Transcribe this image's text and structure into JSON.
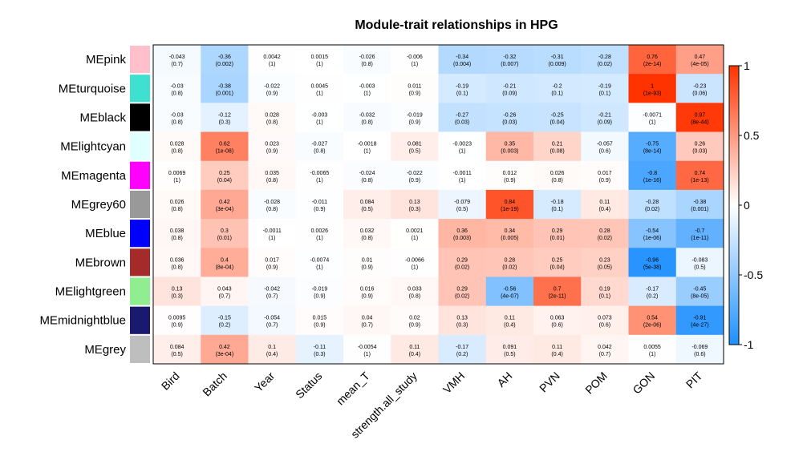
{
  "chart_data": {
    "type": "heatmap",
    "title": "Module-trait relationships in HPG",
    "rows": [
      "MEpink",
      "MEturquoise",
      "MEblack",
      "MElightcyan",
      "MEmagenta",
      "MEgrey60",
      "MEblue",
      "MEbrown",
      "MElightgreen",
      "MEmidnightblue",
      "MEgrey"
    ],
    "row_colors": [
      "#ffc0cb",
      "#40e0d0",
      "#000000",
      "#e0ffff",
      "#ff00ff",
      "#999999",
      "#0000ff",
      "#a52a2a",
      "#90ee90",
      "#191970",
      "#bebebe"
    ],
    "columns": [
      "Bird",
      "Batch",
      "Year",
      "Status",
      "mean_T",
      "strength.all_study",
      "VMH",
      "AH",
      "PVN",
      "POM",
      "GON",
      "PIT"
    ],
    "values": [
      [
        -0.043,
        -0.36,
        0.0042,
        0.0015,
        -0.026,
        -0.006,
        -0.34,
        -0.32,
        -0.31,
        -0.28,
        0.76,
        0.47
      ],
      [
        -0.03,
        -0.38,
        -0.022,
        0.0045,
        -0.003,
        0.011,
        -0.19,
        -0.21,
        -0.2,
        -0.19,
        1,
        -0.23
      ],
      [
        -0.03,
        -0.12,
        0.028,
        -0.003,
        -0.032,
        -0.019,
        -0.27,
        -0.26,
        -0.25,
        -0.21,
        -0.0071,
        0.97
      ],
      [
        0.028,
        0.62,
        0.023,
        -0.027,
        -0.0018,
        0.081,
        -0.0023,
        0.35,
        0.21,
        -0.057,
        -0.75,
        0.26
      ],
      [
        0.0069,
        0.25,
        0.035,
        -0.0065,
        -0.024,
        -0.022,
        -0.0011,
        0.012,
        0.026,
        0.017,
        -0.8,
        0.74
      ],
      [
        0.026,
        0.42,
        -0.028,
        -0.011,
        0.084,
        0.13,
        -0.079,
        0.84,
        -0.18,
        0.11,
        -0.28,
        -0.38
      ],
      [
        0.038,
        0.3,
        -0.0011,
        0.0026,
        0.032,
        0.0021,
        0.36,
        0.34,
        0.29,
        0.28,
        -0.54,
        -0.7
      ],
      [
        0.036,
        0.4,
        0.017,
        -0.0074,
        0.01,
        -0.0066,
        0.29,
        0.28,
        0.25,
        0.23,
        -0.96,
        -0.083
      ],
      [
        0.13,
        0.043,
        -0.042,
        -0.019,
        0.016,
        0.033,
        0.29,
        -0.56,
        0.7,
        0.19,
        -0.17,
        -0.45
      ],
      [
        0.0095,
        -0.15,
        -0.054,
        0.015,
        0.04,
        0.02,
        0.13,
        0.11,
        0.063,
        0.073,
        0.54,
        -0.91
      ],
      [
        0.084,
        0.42,
        0.1,
        -0.11,
        -0.0054,
        0.11,
        -0.17,
        0.091,
        0.11,
        0.042,
        0.0055,
        -0.069
      ]
    ],
    "value_labels": [
      [
        "-0.043",
        "-0.36",
        "0.0042",
        "0.0015",
        "-0.026",
        "-0.006",
        "-0.34",
        "-0.32",
        "-0.31",
        "-0.28",
        "0.76",
        "0.47"
      ],
      [
        "-0.03",
        "-0.38",
        "-0.022",
        "0.0045",
        "-0.003",
        "0.011",
        "-0.19",
        "-0.21",
        "-0.2",
        "-0.19",
        "1",
        "-0.23"
      ],
      [
        "-0.03",
        "-0.12",
        "0.028",
        "-0.003",
        "-0.032",
        "-0.019",
        "-0.27",
        "-0.26",
        "-0.25",
        "-0.21",
        "-0.0071",
        "0.97"
      ],
      [
        "0.028",
        "0.62",
        "0.023",
        "-0.027",
        "-0.0018",
        "0.081",
        "-0.0023",
        "0.35",
        "0.21",
        "-0.057",
        "-0.75",
        "0.26"
      ],
      [
        "0.0069",
        "0.25",
        "0.035",
        "-0.0065",
        "-0.024",
        "-0.022",
        "-0.0011",
        "0.012",
        "0.026",
        "0.017",
        "-0.8",
        "0.74"
      ],
      [
        "0.026",
        "0.42",
        "-0.028",
        "-0.011",
        "0.084",
        "0.13",
        "-0.079",
        "0.84",
        "-0.18",
        "0.11",
        "-0.28",
        "-0.38"
      ],
      [
        "0.038",
        "0.3",
        "-0.0011",
        "0.0026",
        "0.032",
        "0.0021",
        "0.36",
        "0.34",
        "0.29",
        "0.28",
        "-0.54",
        "-0.7"
      ],
      [
        "0.036",
        "0.4",
        "0.017",
        "-0.0074",
        "0.01",
        "-0.0066",
        "0.29",
        "0.28",
        "0.25",
        "0.23",
        "-0.96",
        "-0.083"
      ],
      [
        "0.13",
        "0.043",
        "-0.042",
        "-0.019",
        "0.016",
        "0.033",
        "0.29",
        "-0.56",
        "0.7",
        "0.19",
        "-0.17",
        "-0.45"
      ],
      [
        "0.0095",
        "-0.15",
        "-0.054",
        "0.015",
        "0.04",
        "0.02",
        "0.13",
        "0.11",
        "0.063",
        "0.073",
        "0.54",
        "-0.91"
      ],
      [
        "0.084",
        "0.42",
        "0.1",
        "-0.11",
        "-0.0054",
        "0.11",
        "-0.17",
        "0.091",
        "0.11",
        "0.042",
        "0.0055",
        "-0.069"
      ]
    ],
    "pvalues": [
      [
        "(0.7)",
        "(0.002)",
        "(1)",
        "(1)",
        "(0.8)",
        "(1)",
        "(0.004)",
        "(0.007)",
        "(0.009)",
        "(0.02)",
        "(2e-14)",
        "(4e-05)"
      ],
      [
        "(0.8)",
        "(0.001)",
        "(0.9)",
        "(1)",
        "(1)",
        "(0.9)",
        "(0.1)",
        "(0.09)",
        "(0.1)",
        "(0.1)",
        "(1e-93)",
        "(0.06)"
      ],
      [
        "(0.8)",
        "(0.3)",
        "(0.8)",
        "(1)",
        "(0.8)",
        "(0.9)",
        "(0.03)",
        "(0.03)",
        "(0.04)",
        "(0.09)",
        "(1)",
        "(8e-44)"
      ],
      [
        "(0.8)",
        "(1e-08)",
        "(0.9)",
        "(0.8)",
        "(1)",
        "(0.5)",
        "(1)",
        "(0.003)",
        "(0.08)",
        "(0.6)",
        "(8e-14)",
        "(0.03)"
      ],
      [
        "(1)",
        "(0.04)",
        "(0.8)",
        "(1)",
        "(0.8)",
        "(0.9)",
        "(1)",
        "(0.9)",
        "(0.8)",
        "(0.9)",
        "(1e-16)",
        "(1e-13)"
      ],
      [
        "(0.8)",
        "(3e-04)",
        "(0.8)",
        "(0.9)",
        "(0.5)",
        "(0.3)",
        "(0.5)",
        "(1e-19)",
        "(0.1)",
        "(0.4)",
        "(0.02)",
        "(0.001)"
      ],
      [
        "(0.8)",
        "(0.01)",
        "(1)",
        "(1)",
        "(0.8)",
        "(1)",
        "(0.003)",
        "(0.005)",
        "(0.01)",
        "(0.02)",
        "(1e-06)",
        "(1e-11)"
      ],
      [
        "(0.8)",
        "(8e-04)",
        "(0.9)",
        "(1)",
        "(0.9)",
        "(1)",
        "(0.02)",
        "(0.02)",
        "(0.04)",
        "(0.05)",
        "(5e-38)",
        "(0.5)"
      ],
      [
        "(0.3)",
        "(0.7)",
        "(0.7)",
        "(0.9)",
        "(0.9)",
        "(0.8)",
        "(0.02)",
        "(4e-07)",
        "(2e-11)",
        "(0.1)",
        "(0.2)",
        "(8e-05)"
      ],
      [
        "(0.9)",
        "(0.2)",
        "(0.7)",
        "(0.9)",
        "(0.7)",
        "(0.9)",
        "(0.3)",
        "(0.4)",
        "(0.6)",
        "(0.6)",
        "(2e-06)",
        "(4e-27)"
      ],
      [
        "(0.5)",
        "(3e-04)",
        "(0.4)",
        "(0.3)",
        "(1)",
        "(0.4)",
        "(0.2)",
        "(0.5)",
        "(0.4)",
        "(0.7)",
        "(1)",
        "(0.6)"
      ]
    ],
    "color_scale": {
      "range": [
        -1,
        1
      ],
      "low_color": "#1e90ff",
      "mid_color": "#ffffff",
      "high_color": "#ff3300",
      "ticks": [
        1,
        0.5,
        0,
        -0.5,
        -1
      ],
      "tick_labels": [
        "1",
        "0.5",
        "0",
        "-0.5",
        "-1"
      ]
    }
  }
}
